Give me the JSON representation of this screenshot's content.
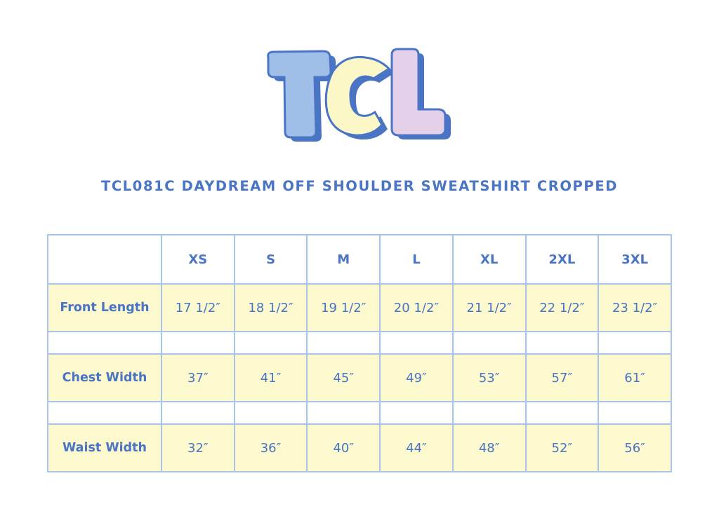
{
  "brand": {
    "logo_text": "TCL"
  },
  "title": "TCL081C DAYDREAM OFF SHOULDER SWEATSHIRT CROPPED",
  "table": {
    "corner": "",
    "sizes": [
      "XS",
      "S",
      "M",
      "L",
      "XL",
      "2XL",
      "3XL"
    ],
    "rows": [
      {
        "label": "Front Length",
        "values": [
          "17 1/2″",
          "18 1/2″",
          "19 1/2″",
          "20 1/2″",
          "21 1/2″",
          "22 1/2″",
          "23 1/2″"
        ]
      },
      {
        "label": "Chest Width",
        "values": [
          "37″",
          "41″",
          "45″",
          "49″",
          "53″",
          "57″",
          "61″"
        ]
      },
      {
        "label": "Waist Width",
        "values": [
          "32″",
          "36″",
          "40″",
          "44″",
          "48″",
          "52″",
          "56″"
        ]
      }
    ]
  },
  "colors": {
    "text": "#4a74c4",
    "border": "#a8c4ea",
    "row_fill": "#fbf9cd",
    "logo_t": "#9fbfe8",
    "logo_c": "#fbf7c6",
    "logo_l": "#e5d0ea",
    "logo_shadow": "#4a74c4"
  }
}
